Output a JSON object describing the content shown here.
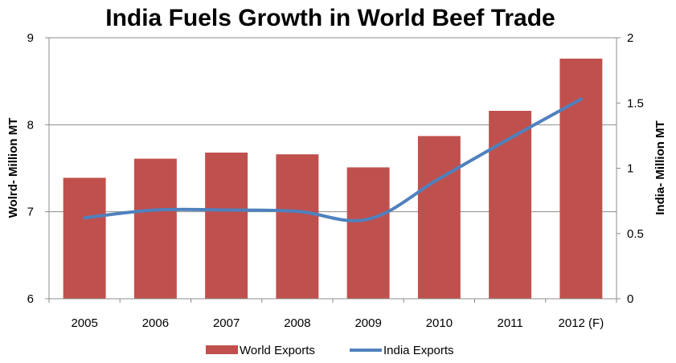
{
  "chart_data": {
    "type": "bar",
    "title": "India Fuels Growth in World Beef Trade",
    "categories": [
      "2005",
      "2006",
      "2007",
      "2008",
      "2009",
      "2010",
      "2011",
      "2012 (F)"
    ],
    "ylabel_left": "Wolrd- Million MT",
    "ylabel_right": "India- Million MT",
    "ylim_left": [
      6,
      9
    ],
    "ylim_right": [
      0,
      2
    ],
    "yticks_left": [
      "6",
      "7",
      "8",
      "9"
    ],
    "yticks_right": [
      "0",
      "0.5",
      "1",
      "1.5",
      "2"
    ],
    "grid": true,
    "legend_position": "bottom",
    "series": [
      {
        "name": "World Exports",
        "type": "bar",
        "axis": "left",
        "color": "#C0504D",
        "values": [
          7.39,
          7.61,
          7.68,
          7.66,
          7.51,
          7.87,
          8.16,
          8.76
        ]
      },
      {
        "name": "India Exports",
        "type": "line",
        "axis": "right",
        "color": "#4F81BD",
        "values": [
          0.62,
          0.68,
          0.68,
          0.67,
          0.61,
          0.92,
          1.23,
          1.53
        ]
      }
    ]
  }
}
